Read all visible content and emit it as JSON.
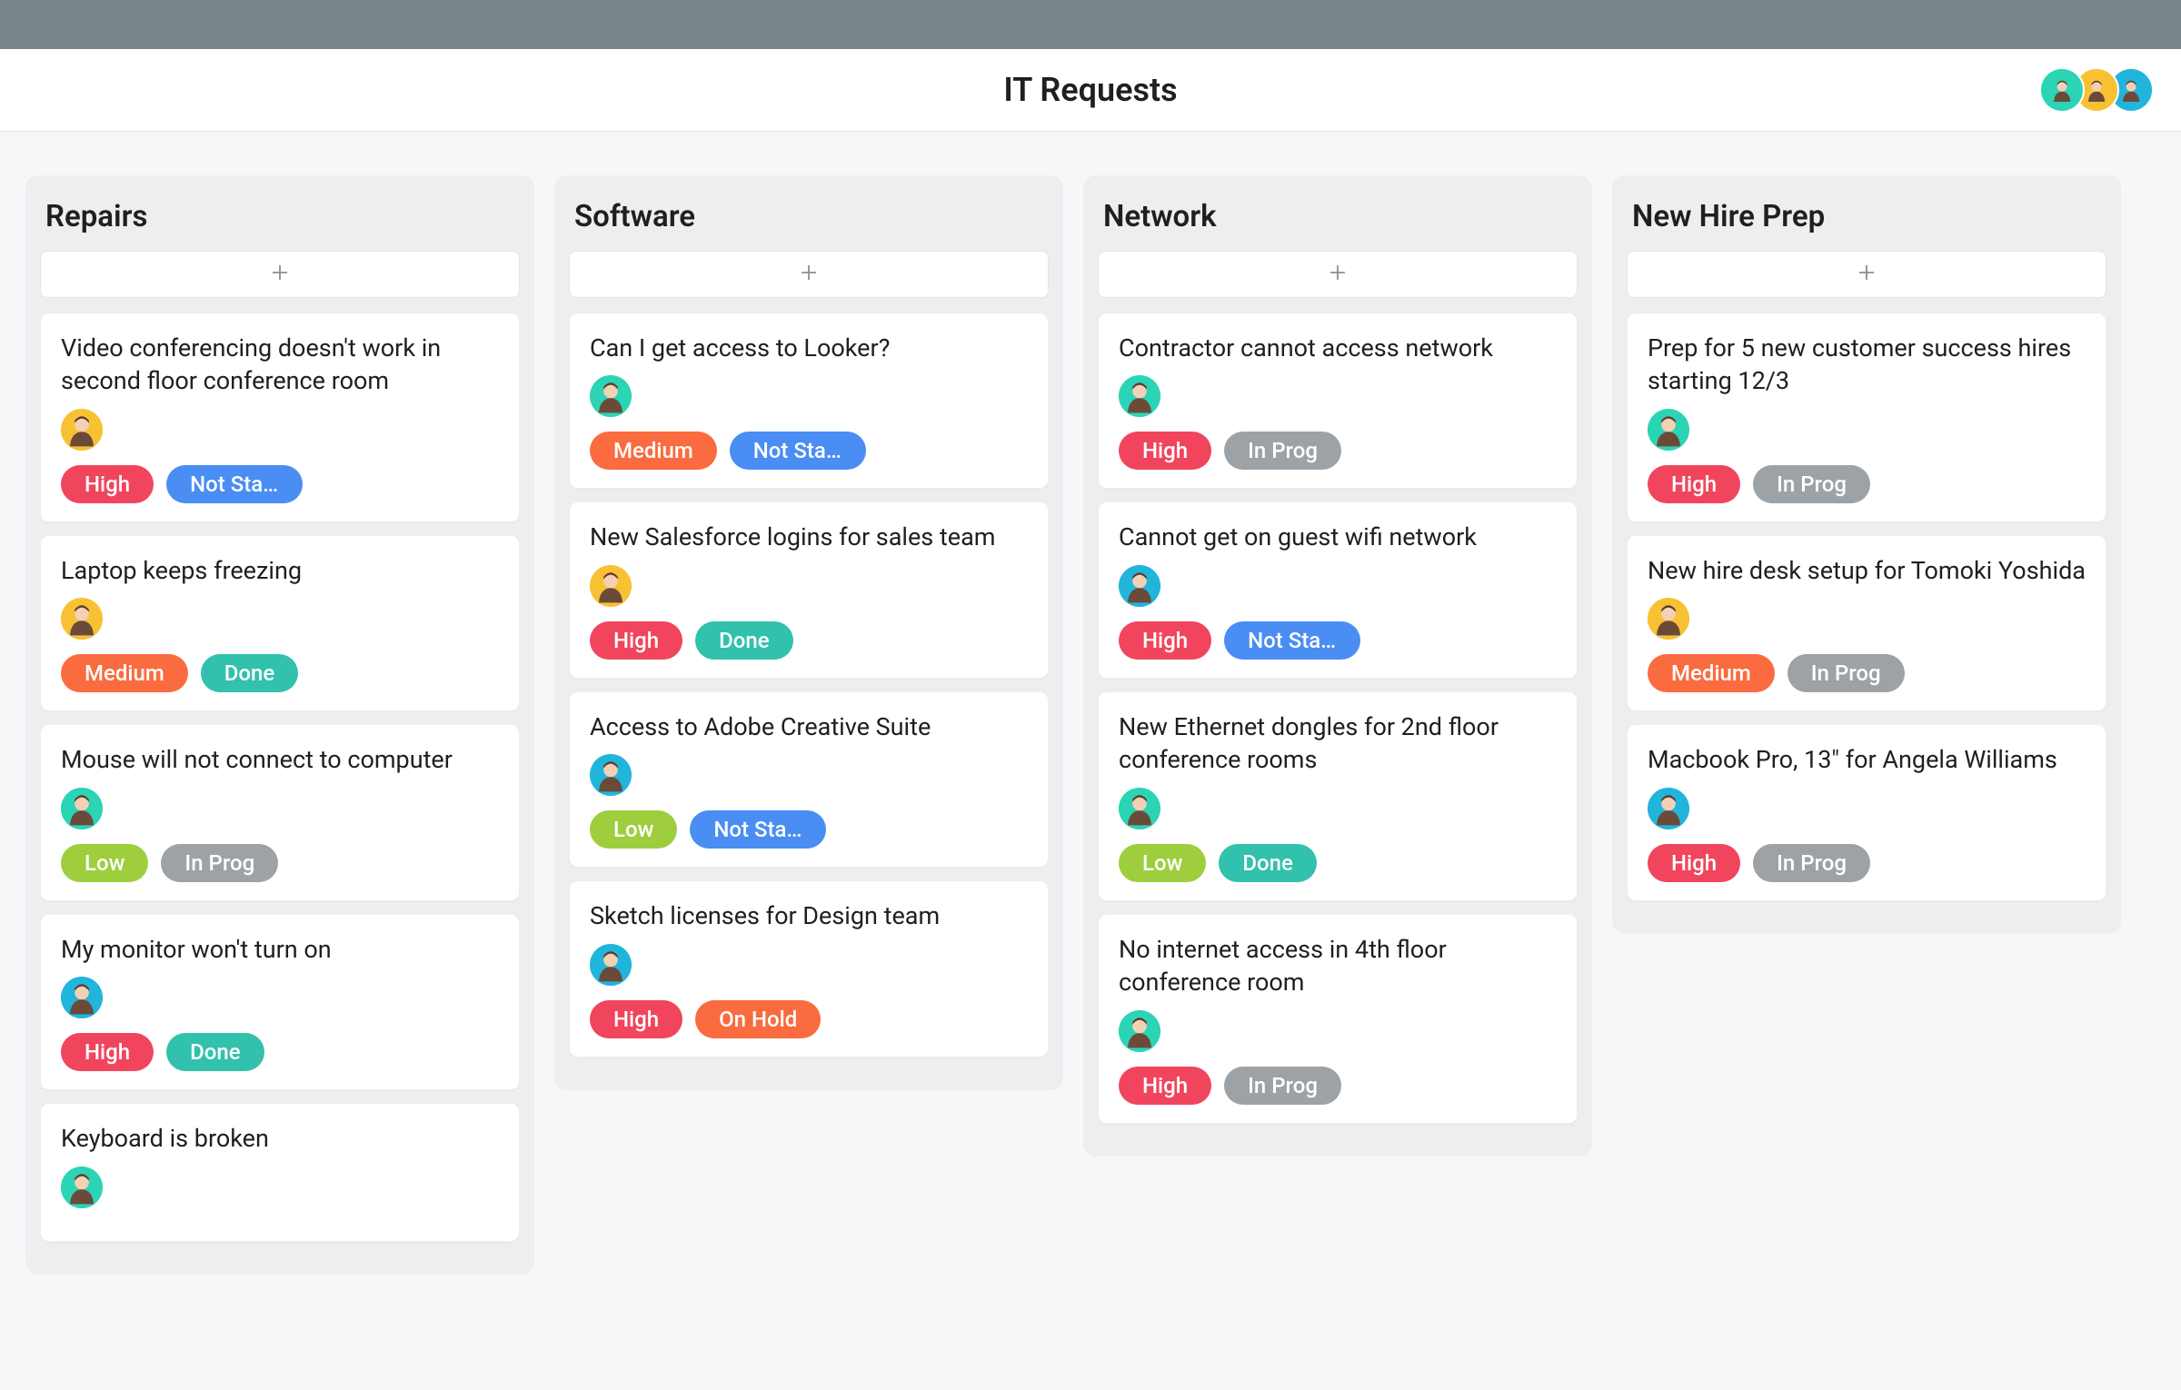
{
  "page": {
    "title": "IT Requests"
  },
  "colors": {
    "high": "#f1455d",
    "medium": "#fa6b3f",
    "low": "#9ece3e",
    "done": "#32c1ac",
    "not_started": "#4a8df3",
    "in_prog": "#9da2a6",
    "on_hold": "#fa6b3f"
  },
  "avatars": {
    "teal": "#2bd4b5",
    "yellow": "#f8c133",
    "cyan": "#21b5dc",
    "blue": "#4a8df3"
  },
  "header_avatars": [
    "teal",
    "yellow",
    "cyan"
  ],
  "columns": [
    {
      "title": "Repairs",
      "cards": [
        {
          "title": "Video conferencing doesn't work in second floor conference room",
          "avatar": "yellow",
          "tags": [
            {
              "label": "High",
              "color": "high"
            },
            {
              "label": "Not Star…",
              "color": "not_started"
            }
          ]
        },
        {
          "title": "Laptop keeps freezing",
          "avatar": "yellow",
          "tags": [
            {
              "label": "Medium",
              "color": "medium"
            },
            {
              "label": "Done",
              "color": "done"
            }
          ]
        },
        {
          "title": "Mouse will not connect to computer",
          "avatar": "teal",
          "tags": [
            {
              "label": "Low",
              "color": "low"
            },
            {
              "label": "In Prog",
              "color": "in_prog"
            }
          ]
        },
        {
          "title": "My monitor won't turn on",
          "avatar": "cyan",
          "tags": [
            {
              "label": "High",
              "color": "high"
            },
            {
              "label": "Done",
              "color": "done"
            }
          ]
        },
        {
          "title": "Keyboard is broken",
          "avatar": "teal",
          "tags": []
        }
      ]
    },
    {
      "title": "Software",
      "cards": [
        {
          "title": "Can I get access to Looker?",
          "avatar": "teal",
          "tags": [
            {
              "label": "Medium",
              "color": "medium"
            },
            {
              "label": "Not Star…",
              "color": "not_started"
            }
          ]
        },
        {
          "title": "New Salesforce logins for sales team",
          "avatar": "yellow",
          "tags": [
            {
              "label": "High",
              "color": "high"
            },
            {
              "label": "Done",
              "color": "done"
            }
          ]
        },
        {
          "title": "Access to Adobe Creative Suite",
          "avatar": "cyan",
          "tags": [
            {
              "label": "Low",
              "color": "low"
            },
            {
              "label": "Not Star…",
              "color": "not_started"
            }
          ]
        },
        {
          "title": "Sketch licenses for Design team",
          "avatar": "cyan",
          "tags": [
            {
              "label": "High",
              "color": "high"
            },
            {
              "label": "On Hold",
              "color": "on_hold"
            }
          ]
        }
      ]
    },
    {
      "title": "Network",
      "cards": [
        {
          "title": "Contractor cannot access network",
          "avatar": "teal",
          "tags": [
            {
              "label": "High",
              "color": "high"
            },
            {
              "label": "In Prog",
              "color": "in_prog"
            }
          ]
        },
        {
          "title": "Cannot get on guest wifi network",
          "avatar": "cyan",
          "tags": [
            {
              "label": "High",
              "color": "high"
            },
            {
              "label": "Not Star…",
              "color": "not_started"
            }
          ]
        },
        {
          "title": "New Ethernet dongles for 2nd floor conference rooms",
          "avatar": "teal",
          "tags": [
            {
              "label": "Low",
              "color": "low"
            },
            {
              "label": "Done",
              "color": "done"
            }
          ]
        },
        {
          "title": "No internet access in 4th floor conference room",
          "avatar": "teal",
          "tags": [
            {
              "label": "High",
              "color": "high"
            },
            {
              "label": "In Prog",
              "color": "in_prog"
            }
          ]
        }
      ]
    },
    {
      "title": "New Hire Prep",
      "cards": [
        {
          "title": "Prep for 5 new customer success hires starting 12/3",
          "avatar": "teal",
          "tags": [
            {
              "label": "High",
              "color": "high"
            },
            {
              "label": "In Prog",
              "color": "in_prog"
            }
          ]
        },
        {
          "title": "New hire desk setup for Tomoki Yoshida",
          "avatar": "yellow",
          "tags": [
            {
              "label": "Medium",
              "color": "medium"
            },
            {
              "label": "In Prog",
              "color": "in_prog"
            }
          ]
        },
        {
          "title": "Macbook Pro, 13\" for Angela Williams",
          "avatar": "cyan",
          "tags": [
            {
              "label": "High",
              "color": "high"
            },
            {
              "label": "In Prog",
              "color": "in_prog"
            }
          ]
        }
      ]
    }
  ]
}
